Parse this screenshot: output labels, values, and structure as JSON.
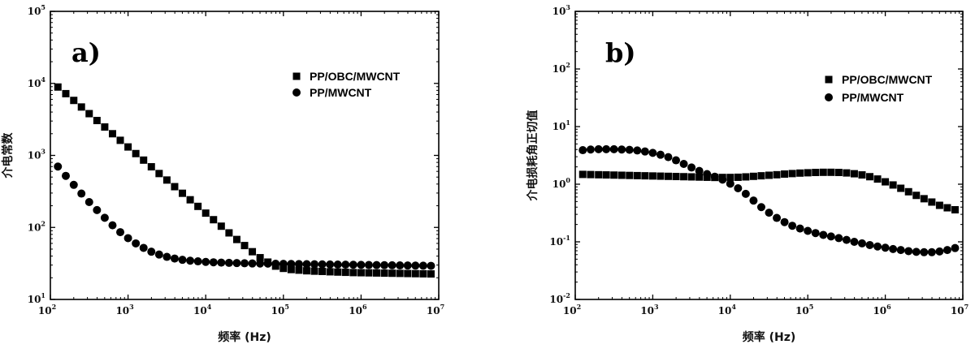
{
  "chart_data": [
    {
      "type": "scatter",
      "panel_label": "a)",
      "xlabel": "频率 (Hz)",
      "ylabel": "介电常数",
      "x_scale": "log",
      "y_scale": "log",
      "xlim": [
        100,
        10000000
      ],
      "ylim": [
        10,
        100000
      ],
      "x_ticks": [
        {
          "base": "10",
          "exp": "2"
        },
        {
          "base": "10",
          "exp": "3"
        },
        {
          "base": "10",
          "exp": "4"
        },
        {
          "base": "10",
          "exp": "5"
        },
        {
          "base": "10",
          "exp": "6"
        },
        {
          "base": "10",
          "exp": "7"
        }
      ],
      "y_ticks": [
        {
          "base": "10",
          "exp": "1"
        },
        {
          "base": "10",
          "exp": "2"
        },
        {
          "base": "10",
          "exp": "3"
        },
        {
          "base": "10",
          "exp": "4"
        },
        {
          "base": "10",
          "exp": "5"
        }
      ],
      "legend_position": "top-right",
      "series": [
        {
          "name": "PP/OBC/MWCNT",
          "marker": "square",
          "color": "#000000",
          "x": [
            125,
            158,
            200,
            251,
            316,
            398,
            501,
            631,
            794,
            1000,
            1259,
            1585,
            1995,
            2512,
            3162,
            3981,
            5012,
            6310,
            7943,
            10000,
            12589,
            15849,
            19953,
            25119,
            31623,
            39811,
            50119,
            63096,
            79433,
            100000,
            125893,
            158489,
            199526,
            251189,
            316228,
            398107,
            501187,
            630957,
            794328,
            1000000,
            1258925,
            1584893,
            1995262,
            2511886,
            3162278,
            3981072,
            5011872,
            6309573,
            7943282
          ],
          "y": [
            8900,
            7200,
            5800,
            4700,
            3800,
            3050,
            2480,
            2000,
            1620,
            1310,
            1060,
            860,
            695,
            560,
            455,
            368,
            298,
            242,
            196,
            158,
            128,
            104,
            84,
            68,
            56,
            46,
            38,
            33,
            29,
            27,
            26,
            25.5,
            25,
            24.7,
            24.5,
            24.2,
            24,
            23.8,
            23.6,
            23.5,
            23.4,
            23.3,
            23.2,
            23.1,
            23,
            22.9,
            22.8,
            22.7,
            22.6
          ]
        },
        {
          "name": "PP/MWCNT",
          "marker": "circle",
          "color": "#000000",
          "x": [
            125,
            158,
            200,
            251,
            316,
            398,
            501,
            631,
            794,
            1000,
            1259,
            1585,
            1995,
            2512,
            3162,
            3981,
            5012,
            6310,
            7943,
            10000,
            12589,
            15849,
            19953,
            25119,
            31623,
            39811,
            50119,
            63096,
            79433,
            100000,
            125893,
            158489,
            199526,
            251189,
            316228,
            398107,
            501187,
            630957,
            794328,
            1000000,
            1258925,
            1584893,
            1995262,
            2511886,
            3162278,
            3981072,
            5011872,
            6309573,
            7943282
          ],
          "y": [
            700,
            520,
            390,
            295,
            225,
            174,
            136,
            107,
            86,
            71,
            60,
            52,
            46,
            42,
            39,
            37,
            35.5,
            34.5,
            33.8,
            33.2,
            32.8,
            32.5,
            32.2,
            32,
            31.8,
            31.6,
            31.5,
            31.4,
            31.3,
            31.2,
            31.1,
            31,
            30.9,
            30.8,
            30.7,
            30.6,
            30.5,
            30.4,
            30.3,
            30.2,
            30.1,
            30,
            29.9,
            29.8,
            29.7,
            29.6,
            29.5,
            29.4,
            29.3
          ]
        }
      ]
    },
    {
      "type": "scatter",
      "panel_label": "b)",
      "xlabel": "频率 (Hz)",
      "ylabel": "介电损耗角正切值",
      "x_scale": "log",
      "y_scale": "log",
      "xlim": [
        100,
        10000000
      ],
      "ylim": [
        0.01,
        1000
      ],
      "x_ticks": [
        {
          "base": "10",
          "exp": "2"
        },
        {
          "base": "10",
          "exp": "3"
        },
        {
          "base": "10",
          "exp": "4"
        },
        {
          "base": "10",
          "exp": "5"
        },
        {
          "base": "10",
          "exp": "6"
        },
        {
          "base": "10",
          "exp": "7"
        }
      ],
      "y_ticks": [
        {
          "base": "10",
          "exp": "-2"
        },
        {
          "base": "10",
          "exp": "-1"
        },
        {
          "base": "10",
          "exp": "0"
        },
        {
          "base": "10",
          "exp": "1"
        },
        {
          "base": "10",
          "exp": "2"
        },
        {
          "base": "10",
          "exp": "3"
        }
      ],
      "legend_position": "top-right",
      "series": [
        {
          "name": "PP/OBC/MWCNT",
          "marker": "square",
          "color": "#000000",
          "x": [
            125,
            158,
            200,
            251,
            316,
            398,
            501,
            631,
            794,
            1000,
            1259,
            1585,
            1995,
            2512,
            3162,
            3981,
            5012,
            6310,
            7943,
            10000,
            12589,
            15849,
            19953,
            25119,
            31623,
            39811,
            50119,
            63096,
            79433,
            100000,
            125893,
            158489,
            199526,
            251189,
            316228,
            398107,
            501187,
            630957,
            794328,
            1000000,
            1258925,
            1584893,
            1995262,
            2511886,
            3162278,
            3981072,
            5011872,
            6309573,
            7943282
          ],
          "y": [
            1.48,
            1.47,
            1.46,
            1.45,
            1.44,
            1.43,
            1.42,
            1.41,
            1.4,
            1.39,
            1.38,
            1.37,
            1.36,
            1.35,
            1.34,
            1.33,
            1.32,
            1.31,
            1.31,
            1.31,
            1.32,
            1.34,
            1.37,
            1.4,
            1.43,
            1.46,
            1.5,
            1.53,
            1.56,
            1.58,
            1.6,
            1.61,
            1.61,
            1.6,
            1.57,
            1.52,
            1.45,
            1.35,
            1.23,
            1.1,
            0.97,
            0.85,
            0.74,
            0.64,
            0.56,
            0.49,
            0.43,
            0.39,
            0.36
          ]
        },
        {
          "name": "PP/MWCNT",
          "marker": "circle",
          "color": "#000000",
          "x": [
            125,
            158,
            200,
            251,
            316,
            398,
            501,
            631,
            794,
            1000,
            1259,
            1585,
            1995,
            2512,
            3162,
            3981,
            5012,
            6310,
            7943,
            10000,
            12589,
            15849,
            19953,
            25119,
            31623,
            39811,
            50119,
            63096,
            79433,
            100000,
            125893,
            158489,
            199526,
            251189,
            316228,
            398107,
            501187,
            630957,
            794328,
            1000000,
            1258925,
            1584893,
            1995262,
            2511886,
            3162278,
            3981072,
            5011872,
            6309573,
            7943282
          ],
          "y": [
            3.9,
            4.0,
            4.05,
            4.05,
            4.05,
            4.0,
            3.95,
            3.85,
            3.7,
            3.5,
            3.25,
            2.95,
            2.6,
            2.25,
            1.95,
            1.7,
            1.5,
            1.35,
            1.2,
            1.02,
            0.85,
            0.68,
            0.52,
            0.4,
            0.32,
            0.26,
            0.22,
            0.19,
            0.17,
            0.155,
            0.142,
            0.132,
            0.124,
            0.116,
            0.108,
            0.1,
            0.094,
            0.088,
            0.083,
            0.079,
            0.075,
            0.072,
            0.069,
            0.067,
            0.066,
            0.066,
            0.068,
            0.072,
            0.078
          ]
        }
      ]
    }
  ]
}
